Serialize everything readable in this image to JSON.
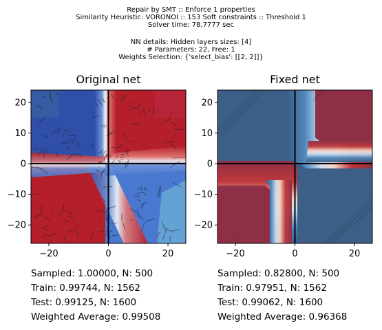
{
  "header": {
    "line1": "Repair by SMT :: Enforce 1 properties",
    "line2": "Similarity Heuristic: VORONOI :: 153 Soft constraints :: Threshold 1",
    "line3": "Solver time: 78.7777 sec",
    "line4": "NN details: Hidden layers sizes: [4]",
    "line5": "# Parameters: 22, Free: 1",
    "line6": "Weights Selection: {'select_bias': [[2, 2]]}"
  },
  "colors": {
    "red": "#8e2f45",
    "blue": "#3b5f86",
    "bright_red": "#b51f2c",
    "bright_blue": "#2f4fa8"
  },
  "chart_data": [
    {
      "type": "heatmap",
      "title": "Original net",
      "xlim": [
        -26,
        26
      ],
      "ylim": [
        -26,
        24
      ],
      "xticks": [
        -20,
        0,
        20
      ],
      "yticks": [
        -20,
        -10,
        0,
        10,
        20
      ],
      "xtick_labels": [
        "−20",
        "0",
        "20"
      ],
      "ytick_labels": [
        "−20",
        "−10",
        "0",
        "10",
        "20"
      ],
      "overlay": "voronoi cells",
      "stats": [
        "Sampled: 1.00000, N: 500",
        "Train: 0.99744, N: 1562",
        "Test: 0.99125, N: 1600",
        "Weighted Average: 0.99508"
      ]
    },
    {
      "type": "heatmap",
      "title": "Fixed net",
      "xlim": [
        -26,
        26
      ],
      "ylim": [
        -26,
        24
      ],
      "xticks": [
        -20,
        0,
        20
      ],
      "yticks": [
        -20,
        -10,
        0,
        10,
        20
      ],
      "xtick_labels": [
        "−20",
        "0",
        "20"
      ],
      "ytick_labels": [
        "−20",
        "−10",
        "0",
        "10",
        "20"
      ],
      "overlay": "none",
      "stats": [
        "Sampled: 0.82800, N: 500",
        "Train: 0.97951, N: 1562",
        "Test: 0.99062, N: 1600",
        "Weighted Average: 0.96368"
      ]
    }
  ]
}
